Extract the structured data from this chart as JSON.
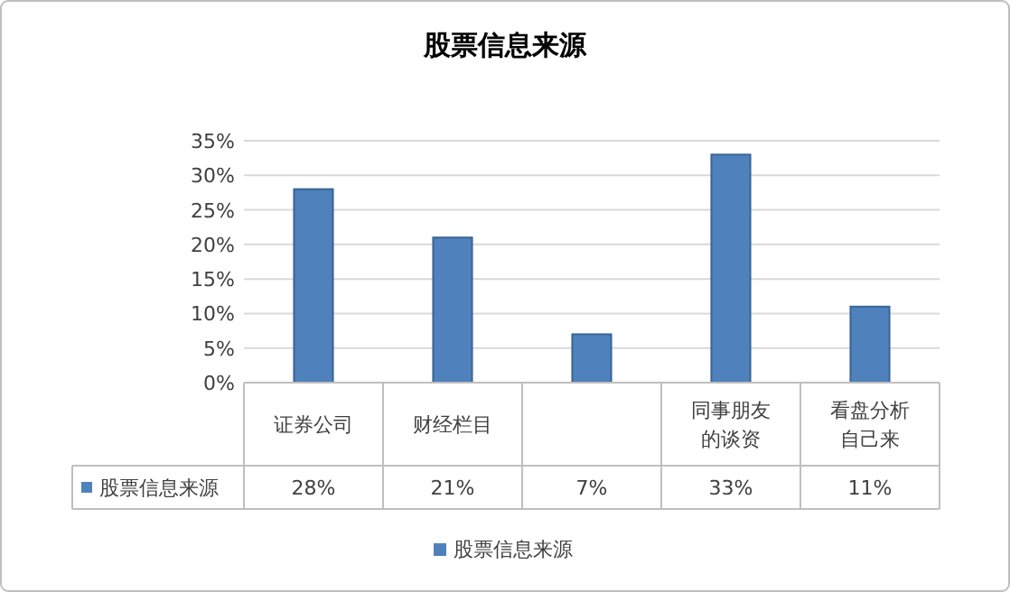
{
  "chart_data": {
    "type": "bar",
    "title": "股票信息来源",
    "categories": [
      "证券公司",
      "财经栏目",
      null,
      "同事朋友的谈资",
      "看盘分析自己来"
    ],
    "series": [
      {
        "name": "股票信息来源",
        "color": "#4f81bd",
        "values": [
          28,
          21,
          7,
          33,
          11
        ],
        "value_labels": [
          "28%",
          "21%",
          "7%",
          "33%",
          "11%"
        ]
      }
    ],
    "ylim": [
      0,
      35
    ],
    "yticks": [
      {
        "value": 0,
        "label": "0%"
      },
      {
        "value": 5,
        "label": "5%"
      },
      {
        "value": 10,
        "label": "10%"
      },
      {
        "value": 15,
        "label": "15%"
      },
      {
        "value": 20,
        "label": "20%"
      },
      {
        "value": 25,
        "label": "25%"
      },
      {
        "value": 30,
        "label": "30%"
      },
      {
        "value": 35,
        "label": "35%"
      }
    ],
    "grid": "y",
    "legend": "bottom"
  }
}
